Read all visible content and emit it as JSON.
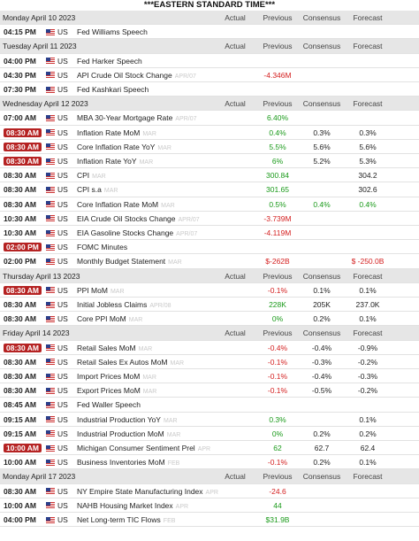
{
  "title": "***EASTERN STANDARD TIME***",
  "columns": [
    "Actual",
    "Previous",
    "Consensus",
    "Forecast"
  ],
  "days": [
    {
      "label": "Monday April 10 2023",
      "rows": [
        {
          "time": "04:15 PM",
          "highlight": false,
          "country": "US",
          "event": "Fed Williams Speech",
          "period": null,
          "actual": null,
          "previous": null,
          "consensus": null,
          "forecast": null
        }
      ]
    },
    {
      "label": "Tuesday April 11 2023",
      "rows": [
        {
          "time": "04:00 PM",
          "highlight": false,
          "country": "US",
          "event": "Fed Harker Speech",
          "period": null,
          "actual": null,
          "previous": null,
          "consensus": null,
          "forecast": null
        },
        {
          "time": "04:30 PM",
          "highlight": false,
          "country": "US",
          "event": "API Crude Oil Stock Change",
          "period": "APR/07",
          "actual": null,
          "previous": {
            "text": "-4.346M",
            "color": "#d42020"
          },
          "consensus": null,
          "forecast": null
        },
        {
          "time": "07:30 PM",
          "highlight": false,
          "country": "US",
          "event": "Fed Kashkari Speech",
          "period": null,
          "actual": null,
          "previous": null,
          "consensus": null,
          "forecast": null
        }
      ]
    },
    {
      "label": "Wednesday April 12 2023",
      "rows": [
        {
          "time": "07:00 AM",
          "highlight": false,
          "country": "US",
          "event": "MBA 30-Year Mortgage Rate",
          "period": "APR/07",
          "actual": null,
          "previous": {
            "text": "6.40%",
            "color": "#1a9a1a"
          },
          "consensus": null,
          "forecast": null
        },
        {
          "time": "08:30 AM",
          "highlight": true,
          "country": "US",
          "event": "Inflation Rate MoM",
          "period": "MAR",
          "actual": null,
          "previous": {
            "text": "0.4%",
            "color": "#1a9a1a"
          },
          "consensus": {
            "text": "0.3%",
            "color": "#222222"
          },
          "forecast": {
            "text": "0.3%",
            "color": "#222222"
          }
        },
        {
          "time": "08:30 AM",
          "highlight": true,
          "country": "US",
          "event": "Core Inflation Rate YoY",
          "period": "MAR",
          "actual": null,
          "previous": {
            "text": "5.5%",
            "color": "#1a9a1a"
          },
          "consensus": {
            "text": "5.6%",
            "color": "#222222"
          },
          "forecast": {
            "text": "5.6%",
            "color": "#222222"
          }
        },
        {
          "time": "08:30 AM",
          "highlight": true,
          "country": "US",
          "event": "Inflation Rate YoY",
          "period": "MAR",
          "actual": null,
          "previous": {
            "text": "6%",
            "color": "#1a9a1a"
          },
          "consensus": {
            "text": "5.2%",
            "color": "#222222"
          },
          "forecast": {
            "text": "5.3%",
            "color": "#222222"
          }
        },
        {
          "time": "08:30 AM",
          "highlight": false,
          "country": "US",
          "event": "CPI",
          "period": "MAR",
          "actual": null,
          "previous": {
            "text": "300.84",
            "color": "#1a9a1a"
          },
          "consensus": null,
          "forecast": {
            "text": "304.2",
            "color": "#222222"
          }
        },
        {
          "time": "08:30 AM",
          "highlight": false,
          "country": "US",
          "event": "CPI s.a",
          "period": "MAR",
          "actual": null,
          "previous": {
            "text": "301.65",
            "color": "#1a9a1a"
          },
          "consensus": null,
          "forecast": {
            "text": "302.6",
            "color": "#222222"
          }
        },
        {
          "time": "08:30 AM",
          "highlight": false,
          "country": "US",
          "event": "Core Inflation Rate MoM",
          "period": "MAR",
          "actual": null,
          "previous": {
            "text": "0.5%",
            "color": "#1a9a1a"
          },
          "consensus": {
            "text": "0.4%",
            "color": "#1a9a1a"
          },
          "forecast": {
            "text": "0.4%",
            "color": "#1a9a1a"
          }
        },
        {
          "time": "10:30 AM",
          "highlight": false,
          "country": "US",
          "event": "EIA Crude Oil Stocks Change",
          "period": "APR/07",
          "actual": null,
          "previous": {
            "text": "-3.739M",
            "color": "#d42020"
          },
          "consensus": null,
          "forecast": null
        },
        {
          "time": "10:30 AM",
          "highlight": false,
          "country": "US",
          "event": "EIA Gasoline Stocks Change",
          "period": "APR/07",
          "actual": null,
          "previous": {
            "text": "-4.119M",
            "color": "#d42020"
          },
          "consensus": null,
          "forecast": null
        },
        {
          "time": "02:00 PM",
          "highlight": true,
          "country": "US",
          "event": "FOMC Minutes",
          "period": null,
          "actual": null,
          "previous": null,
          "consensus": null,
          "forecast": null
        },
        {
          "time": "02:00 PM",
          "highlight": false,
          "country": "US",
          "event": "Monthly Budget Statement",
          "period": "MAR",
          "actual": null,
          "previous": {
            "text": "$-262B",
            "color": "#d42020"
          },
          "consensus": null,
          "forecast": {
            "text": "$ -250.0B",
            "color": "#d42020"
          }
        }
      ]
    },
    {
      "label": "Thursday April 13 2023",
      "rows": [
        {
          "time": "08:30 AM",
          "highlight": true,
          "country": "US",
          "event": "PPI MoM",
          "period": "MAR",
          "actual": null,
          "previous": {
            "text": "-0.1%",
            "color": "#d42020"
          },
          "consensus": {
            "text": "0.1%",
            "color": "#222222"
          },
          "forecast": {
            "text": "0.1%",
            "color": "#222222"
          }
        },
        {
          "time": "08:30 AM",
          "highlight": false,
          "country": "US",
          "event": "Initial Jobless Claims",
          "period": "APR/08",
          "actual": null,
          "previous": {
            "text": "228K",
            "color": "#1a9a1a"
          },
          "consensus": {
            "text": "205K",
            "color": "#222222"
          },
          "forecast": {
            "text": "237.0K",
            "color": "#222222"
          }
        },
        {
          "time": "08:30 AM",
          "highlight": false,
          "country": "US",
          "event": "Core PPI MoM",
          "period": "MAR",
          "actual": null,
          "previous": {
            "text": "0%",
            "color": "#1a9a1a"
          },
          "consensus": {
            "text": "0.2%",
            "color": "#222222"
          },
          "forecast": {
            "text": "0.1%",
            "color": "#222222"
          }
        }
      ]
    },
    {
      "label": "Friday April 14 2023",
      "rows": [
        {
          "time": "08:30 AM",
          "highlight": true,
          "country": "US",
          "event": "Retail Sales MoM",
          "period": "MAR",
          "actual": null,
          "previous": {
            "text": "-0.4%",
            "color": "#d42020"
          },
          "consensus": {
            "text": "-0.4%",
            "color": "#222222"
          },
          "forecast": {
            "text": "-0.9%",
            "color": "#222222"
          }
        },
        {
          "time": "08:30 AM",
          "highlight": false,
          "country": "US",
          "event": "Retail Sales Ex Autos MoM",
          "period": "MAR",
          "actual": null,
          "previous": {
            "text": "-0.1%",
            "color": "#d42020"
          },
          "consensus": {
            "text": "-0.3%",
            "color": "#222222"
          },
          "forecast": {
            "text": "-0.2%",
            "color": "#222222"
          }
        },
        {
          "time": "08:30 AM",
          "highlight": false,
          "country": "US",
          "event": "Import Prices MoM",
          "period": "MAR",
          "actual": null,
          "previous": {
            "text": "-0.1%",
            "color": "#d42020"
          },
          "consensus": {
            "text": "-0.4%",
            "color": "#222222"
          },
          "forecast": {
            "text": "-0.3%",
            "color": "#222222"
          }
        },
        {
          "time": "08:30 AM",
          "highlight": false,
          "country": "US",
          "event": "Export Prices MoM",
          "period": "MAR",
          "actual": null,
          "previous": {
            "text": "-0.1%",
            "color": "#d42020"
          },
          "consensus": {
            "text": "-0.5%",
            "color": "#222222"
          },
          "forecast": {
            "text": "-0.2%",
            "color": "#222222"
          }
        },
        {
          "time": "08:45 AM",
          "highlight": false,
          "country": "US",
          "event": "Fed Waller Speech",
          "period": null,
          "actual": null,
          "previous": null,
          "consensus": null,
          "forecast": null
        },
        {
          "time": "09:15 AM",
          "highlight": false,
          "country": "US",
          "event": "Industrial Production YoY",
          "period": "MAR",
          "actual": null,
          "previous": {
            "text": "0.3%",
            "color": "#1a9a1a"
          },
          "consensus": null,
          "forecast": {
            "text": "0.1%",
            "color": "#222222"
          }
        },
        {
          "time": "09:15 AM",
          "highlight": false,
          "country": "US",
          "event": "Industrial Production MoM",
          "period": "MAR",
          "actual": null,
          "previous": {
            "text": "0%",
            "color": "#1a9a1a"
          },
          "consensus": {
            "text": "0.2%",
            "color": "#222222"
          },
          "forecast": {
            "text": "0.2%",
            "color": "#222222"
          }
        },
        {
          "time": "10:00 AM",
          "highlight": true,
          "country": "US",
          "event": "Michigan Consumer Sentiment Prel",
          "period": "APR",
          "actual": null,
          "previous": {
            "text": "62",
            "color": "#1a9a1a"
          },
          "consensus": {
            "text": "62.7",
            "color": "#222222"
          },
          "forecast": {
            "text": "62.4",
            "color": "#222222"
          }
        },
        {
          "time": "10:00 AM",
          "highlight": false,
          "country": "US",
          "event": "Business Inventories MoM",
          "period": "FEB",
          "actual": null,
          "previous": {
            "text": "-0.1%",
            "color": "#d42020"
          },
          "consensus": {
            "text": "0.2%",
            "color": "#222222"
          },
          "forecast": {
            "text": "0.1%",
            "color": "#222222"
          }
        }
      ]
    },
    {
      "label": "Monday April 17 2023",
      "rows": [
        {
          "time": "08:30 AM",
          "highlight": false,
          "country": "US",
          "event": "NY Empire State Manufacturing Index",
          "period": "APR",
          "actual": null,
          "previous": {
            "text": "-24.6",
            "color": "#d42020"
          },
          "consensus": null,
          "forecast": null
        },
        {
          "time": "10:00 AM",
          "highlight": false,
          "country": "US",
          "event": "NAHB Housing Market Index",
          "period": "APR",
          "actual": null,
          "previous": {
            "text": "44",
            "color": "#1a9a1a"
          },
          "consensus": null,
          "forecast": null
        },
        {
          "time": "04:00 PM",
          "highlight": false,
          "country": "US",
          "event": "Net Long-term TIC Flows",
          "period": "FEB",
          "actual": null,
          "previous": {
            "text": "$31.9B",
            "color": "#1a9a1a"
          },
          "consensus": null,
          "forecast": null
        }
      ]
    }
  ]
}
